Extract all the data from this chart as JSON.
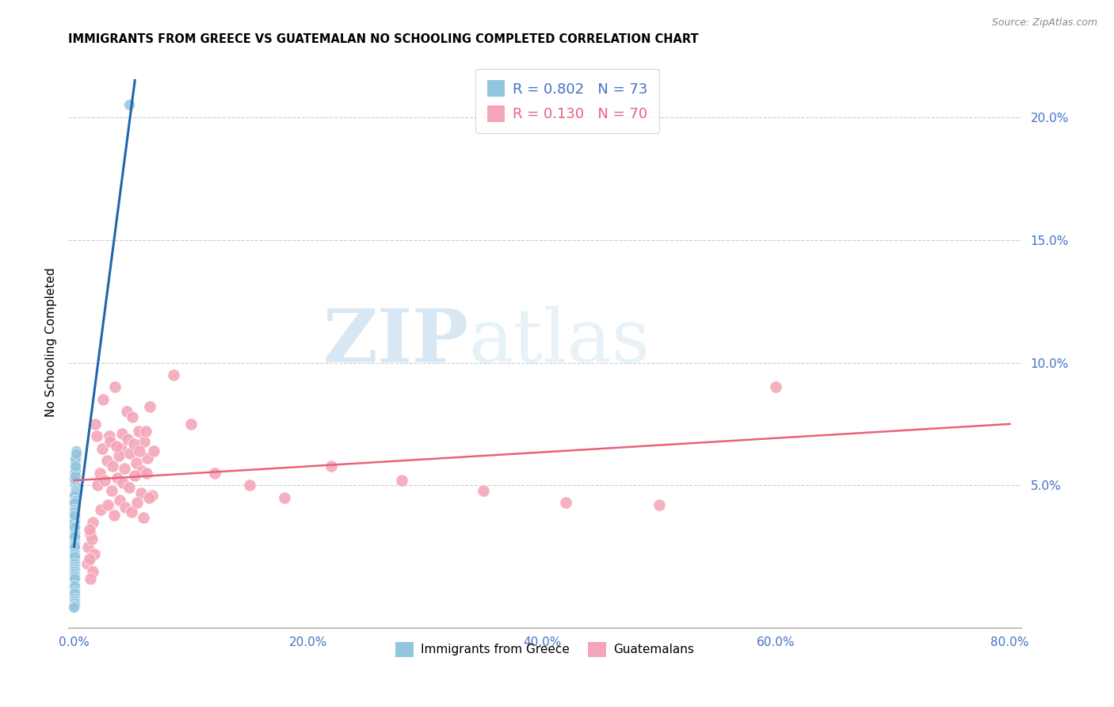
{
  "title": "IMMIGRANTS FROM GREECE VS GUATEMALAN NO SCHOOLING COMPLETED CORRELATION CHART",
  "source": "Source: ZipAtlas.com",
  "ylabel": "No Schooling Completed",
  "legend1_r": "R = 0.802",
  "legend1_n": "N = 73",
  "legend2_r": "R = 0.130",
  "legend2_n": "N = 70",
  "legend_bottom1": "Immigrants from Greece",
  "legend_bottom2": "Guatemalans",
  "color_blue": "#92c5de",
  "color_pink": "#f4a6b8",
  "color_blue_dark": "#2166ac",
  "color_pink_dark": "#e8637a",
  "color_axis_text": "#4472c4",
  "watermark_zip": "ZIP",
  "watermark_atlas": "atlas",
  "greece_x": [
    0.0005,
    0.001,
    0.0008,
    0.0012,
    0.0006,
    0.0015,
    0.0009,
    0.0011,
    0.0007,
    0.0013,
    0.0004,
    0.0016,
    0.0008,
    0.001,
    0.0012,
    0.0005,
    0.0014,
    0.0007,
    0.0009,
    0.0011,
    0.0003,
    0.0006,
    0.0004,
    0.0008,
    0.0005,
    0.0002,
    0.0007,
    0.0003,
    0.0005,
    0.0004,
    0.0006,
    0.0003,
    0.0004,
    0.0005,
    0.0006,
    0.0003,
    0.0004,
    0.0002,
    0.0003,
    0.0005,
    0.0002,
    0.0003,
    0.0001,
    0.0002,
    0.0003,
    0.0001,
    0.0002,
    0.0001,
    0.0002,
    0.0001,
    0.0002,
    0.0001,
    0.0002,
    0.0001,
    0.00015,
    0.0001,
    0.00012,
    0.0001,
    0.0001,
    8e-05,
    5e-05,
    7e-05,
    0.0001,
    6e-05,
    9e-05,
    0.0001,
    8e-05,
    7e-05,
    5e-05,
    6e-05,
    4e-05,
    3e-05,
    0.047
  ],
  "greece_y": [
    0.055,
    0.06,
    0.05,
    0.058,
    0.052,
    0.062,
    0.048,
    0.057,
    0.053,
    0.059,
    0.045,
    0.064,
    0.047,
    0.056,
    0.061,
    0.044,
    0.063,
    0.046,
    0.054,
    0.058,
    0.04,
    0.042,
    0.038,
    0.044,
    0.041,
    0.036,
    0.043,
    0.037,
    0.04,
    0.039,
    0.035,
    0.034,
    0.036,
    0.033,
    0.037,
    0.032,
    0.035,
    0.031,
    0.033,
    0.038,
    0.028,
    0.03,
    0.025,
    0.027,
    0.029,
    0.024,
    0.026,
    0.023,
    0.025,
    0.022,
    0.02,
    0.019,
    0.021,
    0.018,
    0.017,
    0.016,
    0.015,
    0.014,
    0.013,
    0.012,
    0.008,
    0.007,
    0.009,
    0.006,
    0.007,
    0.005,
    0.006,
    0.004,
    0.003,
    0.002,
    0.001,
    0.0005,
    0.205
  ],
  "guatemala_x": [
    0.018,
    0.025,
    0.03,
    0.035,
    0.04,
    0.045,
    0.05,
    0.055,
    0.06,
    0.065,
    0.022,
    0.028,
    0.033,
    0.038,
    0.043,
    0.048,
    0.053,
    0.058,
    0.063,
    0.068,
    0.02,
    0.026,
    0.032,
    0.037,
    0.042,
    0.047,
    0.052,
    0.057,
    0.062,
    0.067,
    0.019,
    0.024,
    0.031,
    0.036,
    0.041,
    0.046,
    0.051,
    0.056,
    0.061,
    0.023,
    0.029,
    0.034,
    0.039,
    0.044,
    0.049,
    0.054,
    0.059,
    0.064,
    0.085,
    0.1,
    0.12,
    0.15,
    0.18,
    0.22,
    0.28,
    0.35,
    0.42,
    0.5,
    0.6,
    0.016,
    0.014,
    0.012,
    0.015,
    0.013,
    0.017,
    0.011,
    0.016,
    0.014,
    0.013
  ],
  "guatemala_y": [
    0.075,
    0.085,
    0.07,
    0.09,
    0.065,
    0.08,
    0.078,
    0.072,
    0.068,
    0.082,
    0.055,
    0.06,
    0.058,
    0.062,
    0.057,
    0.063,
    0.059,
    0.056,
    0.061,
    0.064,
    0.05,
    0.052,
    0.048,
    0.053,
    0.051,
    0.049,
    0.054,
    0.047,
    0.055,
    0.046,
    0.07,
    0.065,
    0.068,
    0.066,
    0.071,
    0.069,
    0.067,
    0.064,
    0.072,
    0.04,
    0.042,
    0.038,
    0.044,
    0.041,
    0.039,
    0.043,
    0.037,
    0.045,
    0.095,
    0.075,
    0.055,
    0.05,
    0.045,
    0.058,
    0.052,
    0.048,
    0.043,
    0.042,
    0.09,
    0.035,
    0.03,
    0.025,
    0.028,
    0.032,
    0.022,
    0.018,
    0.015,
    0.012,
    0.02
  ],
  "xlim": [
    -0.005,
    0.81
  ],
  "ylim": [
    -0.008,
    0.225
  ],
  "xtick_vals": [
    0.0,
    0.2,
    0.4,
    0.6,
    0.8
  ],
  "xtick_labels": [
    "0.0%",
    "20.0%",
    "40.0%",
    "60.0%",
    "80.0%"
  ],
  "ytick_vals": [
    0.05,
    0.1,
    0.15,
    0.2
  ],
  "ytick_labels": [
    "5.0%",
    "10.0%",
    "15.0%",
    "20.0%"
  ],
  "grid_vals": [
    0.05,
    0.1,
    0.15,
    0.2
  ],
  "blue_line_x": [
    0.0,
    0.052
  ],
  "blue_line_y": [
    0.025,
    0.215
  ],
  "pink_line_x": [
    0.0,
    0.8
  ],
  "pink_line_y": [
    0.052,
    0.075
  ]
}
